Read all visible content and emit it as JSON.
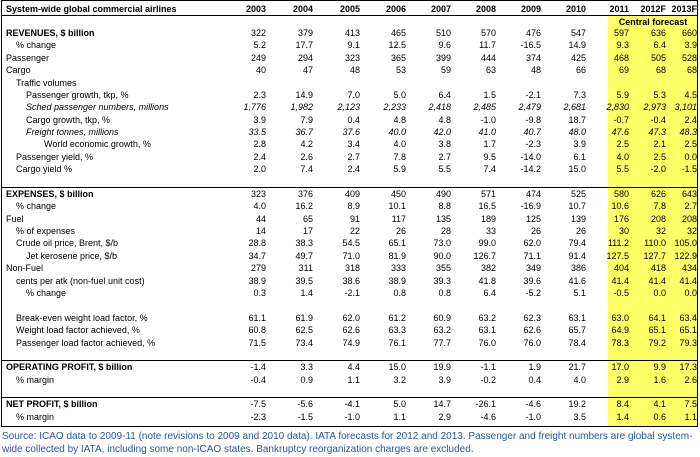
{
  "title": "System-wide global commercial airlines",
  "years": [
    "2003",
    "2004",
    "2005",
    "2006",
    "2007",
    "2008",
    "2009",
    "2010",
    "2011",
    "2012F",
    "2013F"
  ],
  "central_forecast_label": "Central forecast",
  "rows": [
    {
      "label": "REVENUES, $ billion",
      "style": "bold",
      "indent": 0,
      "values": [
        "322",
        "379",
        "413",
        "465",
        "510",
        "570",
        "476",
        "547",
        "597",
        "636",
        "660"
      ]
    },
    {
      "label": "% change",
      "style": "",
      "indent": 1,
      "values": [
        "5.2",
        "17.7",
        "9.1",
        "12.5",
        "9.6",
        "11.7",
        "-16.5",
        "14.9",
        "9.3",
        "6.4",
        "3.9"
      ]
    },
    {
      "label": "Passenger",
      "style": "",
      "indent": 0,
      "values": [
        "249",
        "294",
        "323",
        "365",
        "399",
        "444",
        "374",
        "425",
        "468",
        "505",
        "528"
      ]
    },
    {
      "label": "Cargo",
      "style": "",
      "indent": 0,
      "values": [
        "40",
        "47",
        "48",
        "53",
        "59",
        "63",
        "48",
        "66",
        "69",
        "68",
        "68"
      ]
    },
    {
      "label": "Traffic volumes",
      "style": "",
      "indent": 1,
      "values": [
        "",
        "",
        "",
        "",
        "",
        "",
        "",
        "",
        "",
        "",
        ""
      ]
    },
    {
      "label": "Passenger growth, tkp, %",
      "style": "",
      "indent": 2,
      "values": [
        "2.3",
        "14.9",
        "7.0",
        "5.0",
        "6.4",
        "1.5",
        "-2.1",
        "7.3",
        "5.9",
        "5.3",
        "4.5"
      ]
    },
    {
      "label": "Sched passenger numbers, millions",
      "style": "italic",
      "indent": 2,
      "values": [
        "1,776",
        "1,982",
        "2,123",
        "2,233",
        "2,418",
        "2,485",
        "2,479",
        "2,681",
        "2,830",
        "2,973",
        "3,101"
      ]
    },
    {
      "label": "Cargo growth, tkp, %",
      "style": "",
      "indent": 2,
      "values": [
        "3.9",
        "7.9",
        "0.4",
        "4.8",
        "4.8",
        "-1.0",
        "-9.8",
        "18.7",
        "-0.7",
        "-0.4",
        "2.4"
      ]
    },
    {
      "label": "Freight tonnes, millions",
      "style": "italic",
      "indent": 2,
      "values": [
        "33.5",
        "36.7",
        "37.6",
        "40.0",
        "42.0",
        "41.0",
        "40.7",
        "48.0",
        "47.6",
        "47.3",
        "48.3"
      ]
    },
    {
      "label": "World economic growth, %",
      "style": "",
      "indent": 3,
      "values": [
        "2.8",
        "4.2",
        "3.4",
        "4.0",
        "3.8",
        "1.7",
        "-2.3",
        "3.9",
        "2.5",
        "2.1",
        "2.5"
      ]
    },
    {
      "label": "Passenger yield, %",
      "style": "",
      "indent": 1,
      "values": [
        "2.4",
        "2.6",
        "2.7",
        "7.8",
        "2.7",
        "9.5",
        "-14.0",
        "6.1",
        "4.0",
        "2.5",
        "0.0"
      ]
    },
    {
      "label": "Cargo yield %",
      "style": "",
      "indent": 1,
      "values": [
        "2.0",
        "7.4",
        "2.4",
        "5.9",
        "5.5",
        "7.4",
        "-14.2",
        "15.0",
        "5.5",
        "-2.0",
        "-1.5"
      ]
    },
    {
      "label": "",
      "style": "",
      "indent": 0,
      "values": [
        "",
        "",
        "",
        "",
        "",
        "",
        "",
        "",
        "",
        "",
        ""
      ]
    },
    {
      "label": "EXPENSES, $ billion",
      "style": "bold",
      "indent": 0,
      "values": [
        "323",
        "376",
        "409",
        "450",
        "490",
        "571",
        "474",
        "525",
        "580",
        "626",
        "643"
      ]
    },
    {
      "label": "% change",
      "style": "",
      "indent": 1,
      "values": [
        "4.0",
        "16.2",
        "8.9",
        "10.1",
        "8.8",
        "16.5",
        "-16.9",
        "10.7",
        "10.6",
        "7.8",
        "2.7"
      ]
    },
    {
      "label": "Fuel",
      "style": "",
      "indent": 0,
      "values": [
        "44",
        "65",
        "91",
        "117",
        "135",
        "189",
        "125",
        "139",
        "176",
        "208",
        "208"
      ]
    },
    {
      "label": "% of expenses",
      "style": "",
      "indent": 1,
      "values": [
        "14",
        "17",
        "22",
        "26",
        "28",
        "33",
        "26",
        "26",
        "30",
        "32",
        "32"
      ]
    },
    {
      "label": "Crude oil price, Brent, $/b",
      "style": "",
      "indent": 1,
      "values": [
        "28.8",
        "38.3",
        "54.5",
        "65.1",
        "73.0",
        "99.0",
        "62.0",
        "79.4",
        "111.2",
        "110.0",
        "105.0"
      ]
    },
    {
      "label": "Jet kerosene price, $/b",
      "style": "",
      "indent": 2,
      "values": [
        "34.7",
        "49.7",
        "71.0",
        "81.9",
        "90.0",
        "126.7",
        "71.1",
        "91.4",
        "127.5",
        "127.7",
        "122.9"
      ]
    },
    {
      "label": "Non-Fuel",
      "style": "",
      "indent": 0,
      "values": [
        "279",
        "311",
        "318",
        "333",
        "355",
        "382",
        "349",
        "386",
        "404",
        "418",
        "434"
      ]
    },
    {
      "label": "cents per atk (non-fuel unit cost)",
      "style": "",
      "indent": 1,
      "values": [
        "38.9",
        "39.5",
        "38.6",
        "38.9",
        "39.3",
        "41.8",
        "39.6",
        "41.6",
        "41.4",
        "41.4",
        "41.4"
      ]
    },
    {
      "label": "% change",
      "style": "",
      "indent": 2,
      "values": [
        "0.3",
        "1.4",
        "-2.1",
        "0.8",
        "0.8",
        "6.4",
        "-5.2",
        "5.1",
        "-0.5",
        "0.0",
        "0.0"
      ]
    },
    {
      "label": "",
      "style": "",
      "indent": 0,
      "values": [
        "",
        "",
        "",
        "",
        "",
        "",
        "",
        "",
        "",
        "",
        ""
      ]
    },
    {
      "label": "Break-even weight load factor, %",
      "style": "",
      "indent": 1,
      "values": [
        "61.1",
        "61.9",
        "62.0",
        "61.2",
        "60.9",
        "63.2",
        "62.3",
        "63.1",
        "63.0",
        "64.1",
        "63.4"
      ]
    },
    {
      "label": "Weight load factor achieved, %",
      "style": "",
      "indent": 1,
      "values": [
        "60.8",
        "62.5",
        "62.6",
        "63.3",
        "63.2",
        "63.1",
        "62.6",
        "65.7",
        "64.9",
        "65.1",
        "65.1"
      ]
    },
    {
      "label": "Passenger load factor achieved, %",
      "style": "",
      "indent": 1,
      "values": [
        "71.5",
        "73.4",
        "74.9",
        "76.1",
        "77.7",
        "76.0",
        "76.0",
        "78.4",
        "78.3",
        "79.2",
        "79.3"
      ]
    },
    {
      "label": "",
      "style": "",
      "indent": 0,
      "values": [
        "",
        "",
        "",
        "",
        "",
        "",
        "",
        "",
        "",
        "",
        ""
      ]
    },
    {
      "label": "OPERATING PROFIT, $ billion",
      "style": "bold",
      "indent": 0,
      "values": [
        "-1.4",
        "3.3",
        "4.4",
        "15.0",
        "19.9",
        "-1.1",
        "1.9",
        "21.7",
        "17.0",
        "9.9",
        "17.3"
      ]
    },
    {
      "label": "% margin",
      "style": "",
      "indent": 1,
      "values": [
        "-0.4",
        "0.9",
        "1.1",
        "3.2",
        "3.9",
        "-0.2",
        "0.4",
        "4.0",
        "2.9",
        "1.6",
        "2.6"
      ]
    },
    {
      "label": "",
      "style": "",
      "indent": 0,
      "values": [
        "",
        "",
        "",
        "",
        "",
        "",
        "",
        "",
        "",
        "",
        ""
      ]
    },
    {
      "label": "NET PROFIT, $ billion",
      "style": "bold",
      "indent": 0,
      "values": [
        "-7.5",
        "-5.6",
        "-4.1",
        "5.0",
        "14.7",
        "-26.1",
        "-4.6",
        "19.2",
        "8.4",
        "4.1",
        "7.5"
      ]
    },
    {
      "label": "% margin",
      "style": "",
      "indent": 1,
      "values": [
        "-2.3",
        "-1.5",
        "-1.0",
        "1.1",
        "2.9",
        "-4.6",
        "-1.0",
        "3.5",
        "1.4",
        "0.6",
        "1.1"
      ]
    }
  ],
  "source_note": "Source: ICAO data to 2009-11 (note revisions to 2009 and 2010 data).  IATA forecasts for 2012 and 2013.  Passenger and freight numbers are global system-wide collected by IATA, including some non-ICAO states.  Bankruptcy reorganization charges are excluded."
}
